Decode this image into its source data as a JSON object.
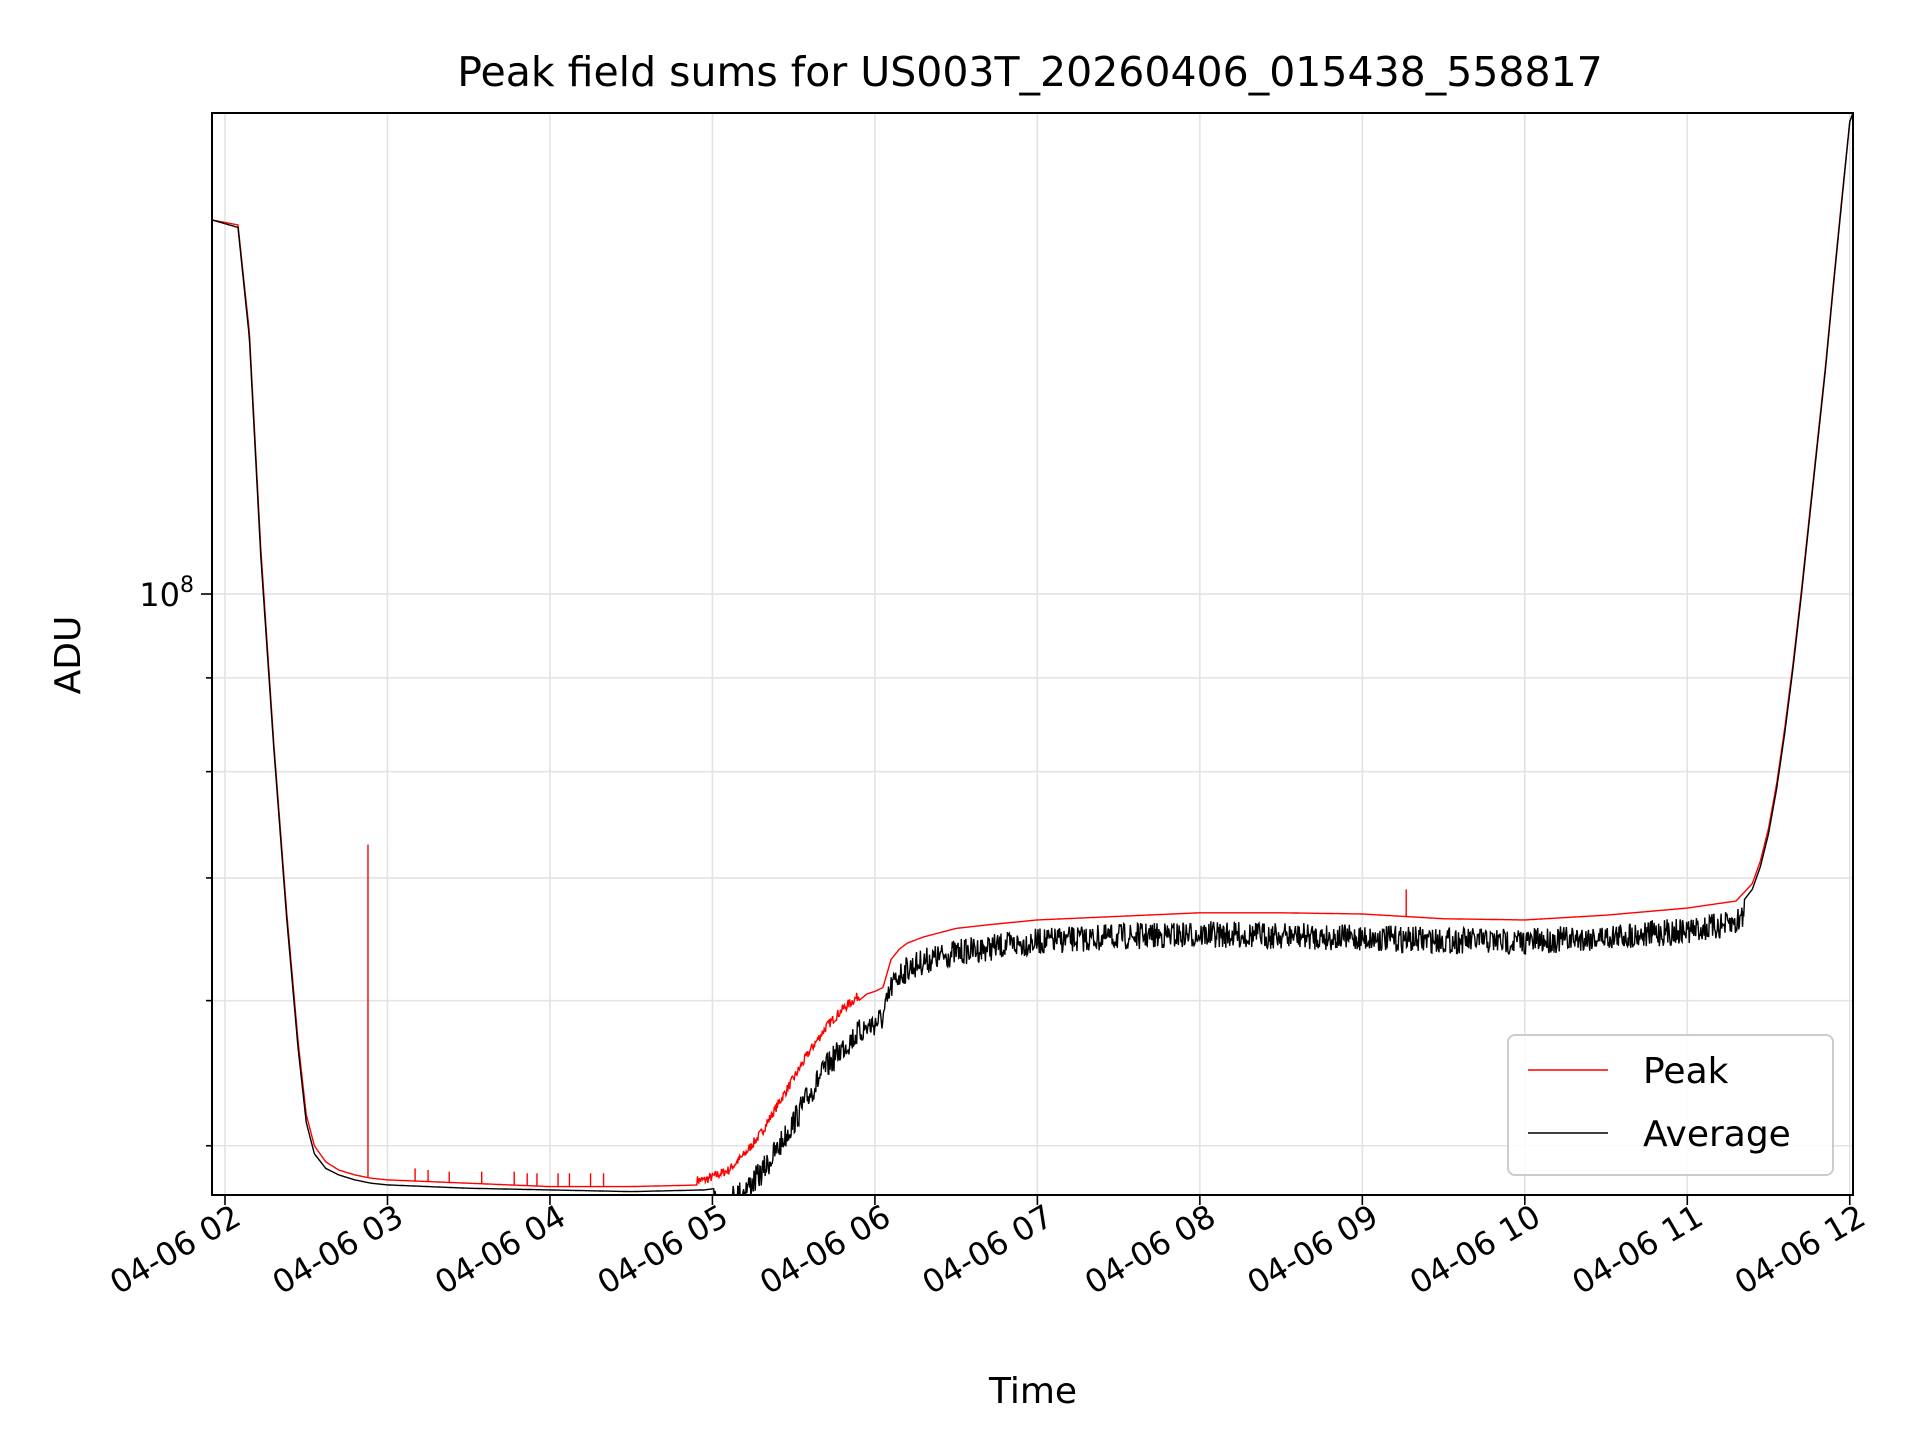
{
  "chart_data": {
    "type": "line",
    "title": "Peak field sums for US003T_20260406_015438_558817",
    "xlabel": "Time",
    "ylabel": "ADU",
    "x_unit": "hours since 04-06 00:00",
    "x_range": [
      1.92,
      12.02
    ],
    "y_scale": "log",
    "y_range": [
      47000000,
      183000000
    ],
    "y_tick_labels": [
      {
        "value": 100000000,
        "base": "10",
        "exp": "8"
      }
    ],
    "y_minor_ticks": [
      50000000,
      60000000,
      70000000,
      80000000,
      90000000
    ],
    "x_ticks": [
      {
        "value": 2,
        "label": "04-06 02"
      },
      {
        "value": 3,
        "label": "04-06 03"
      },
      {
        "value": 4,
        "label": "04-06 04"
      },
      {
        "value": 5,
        "label": "04-06 05"
      },
      {
        "value": 6,
        "label": "04-06 06"
      },
      {
        "value": 7,
        "label": "04-06 07"
      },
      {
        "value": 8,
        "label": "04-06 08"
      },
      {
        "value": 9,
        "label": "04-06 09"
      },
      {
        "value": 10,
        "label": "04-06 10"
      },
      {
        "value": 11,
        "label": "04-06 11"
      },
      {
        "value": 12,
        "label": "04-06 12"
      }
    ],
    "grid": true,
    "legend_position": "lower-right",
    "series": [
      {
        "name": "Peak",
        "color": "#ff0000",
        "x": [
          1.92,
          2.08,
          2.15,
          2.22,
          2.3,
          2.38,
          2.45,
          2.5,
          2.55,
          2.62,
          2.7,
          2.8,
          2.9,
          3.0,
          3.5,
          4.0,
          4.5,
          4.95,
          5.1,
          5.2,
          5.3,
          5.4,
          5.5,
          5.6,
          5.7,
          5.8,
          5.9,
          5.95,
          6.0,
          6.05,
          6.1,
          6.15,
          6.2,
          6.3,
          6.5,
          6.7,
          7.0,
          7.5,
          8.0,
          8.5,
          9.0,
          9.5,
          10.0,
          10.5,
          11.0,
          11.3,
          11.4,
          11.45,
          11.5,
          11.55,
          11.6,
          11.65,
          11.7,
          11.75,
          11.8,
          11.85,
          11.9,
          11.95,
          12.0,
          12.02
        ],
        "y": [
          160000000,
          159000000,
          139000000,
          106000000,
          83000000,
          67000000,
          57000000,
          52000000,
          50000000,
          49000000,
          48500000,
          48200000,
          48000000,
          47900000,
          47700000,
          47500000,
          47500000,
          47600000,
          48200000,
          49200000,
          50500000,
          52300000,
          54100000,
          56000000,
          57700000,
          59000000,
          60000000,
          60500000,
          60700000,
          61000000,
          63200000,
          64000000,
          64500000,
          65000000,
          65700000,
          66000000,
          66400000,
          66700000,
          67000000,
          67000000,
          66900000,
          66500000,
          66400000,
          66800000,
          67400000,
          68000000,
          69500000,
          71500000,
          74500000,
          78800000,
          84500000,
          91500000,
          100000000,
          110000000,
          121000000,
          133000000,
          148000000,
          164000000,
          181000000,
          183000000
        ],
        "spikes": [
          {
            "x": 2.88,
            "y": 73000000
          },
          {
            "x": 9.27,
            "y": 69000000
          },
          {
            "x": 3.17,
            "y": 48600000
          },
          {
            "x": 3.25,
            "y": 48500000
          },
          {
            "x": 3.38,
            "y": 48400000
          },
          {
            "x": 3.58,
            "y": 48400000
          },
          {
            "x": 3.78,
            "y": 48400000
          },
          {
            "x": 3.86,
            "y": 48300000
          },
          {
            "x": 3.92,
            "y": 48300000
          },
          {
            "x": 4.05,
            "y": 48300000
          },
          {
            "x": 4.12,
            "y": 48300000
          },
          {
            "x": 4.25,
            "y": 48300000
          },
          {
            "x": 4.33,
            "y": 48300000
          }
        ]
      },
      {
        "name": "Average",
        "color": "#000000",
        "x": [
          1.92,
          2.08,
          2.15,
          2.22,
          2.3,
          2.38,
          2.45,
          2.5,
          2.55,
          2.62,
          2.7,
          2.8,
          2.9,
          3.0,
          3.5,
          4.0,
          4.5,
          4.95,
          5.1,
          5.2,
          5.3,
          5.4,
          5.5,
          5.6,
          5.7,
          5.8,
          5.9,
          5.95,
          6.0,
          6.05,
          6.1,
          6.15,
          6.2,
          6.3,
          6.5,
          6.7,
          7.0,
          7.5,
          8.0,
          8.5,
          9.0,
          9.5,
          10.0,
          10.5,
          11.0,
          11.3,
          11.4,
          11.45,
          11.5,
          11.55,
          11.6,
          11.65,
          11.7,
          11.75,
          11.8,
          11.85,
          11.9,
          11.95,
          12.0,
          12.02
        ],
        "y": [
          160000000,
          158500000,
          138000000,
          105000000,
          82500000,
          66500000,
          56500000,
          51500000,
          49500000,
          48600000,
          48200000,
          47900000,
          47700000,
          47600000,
          47400000,
          47300000,
          47200000,
          47300000,
          47500000,
          48100000,
          49100000,
          50600000,
          52400000,
          54300000,
          56100000,
          57500000,
          58600000,
          59000000,
          59300000,
          59700000,
          62000000,
          63000000,
          63500000,
          64100000,
          64800000,
          65200000,
          65700000,
          66100000,
          66300000,
          66200000,
          66000000,
          65800000,
          65700000,
          66100000,
          66600000,
          67200000,
          69000000,
          71000000,
          74000000,
          78300000,
          84000000,
          91000000,
          99500000,
          109500000,
          120500000,
          132500000,
          147500000,
          163500000,
          181000000,
          183000000
        ],
        "noise": {
          "from": 5.0,
          "to": 11.35,
          "amplitude_fraction": 0.015
        }
      }
    ]
  }
}
